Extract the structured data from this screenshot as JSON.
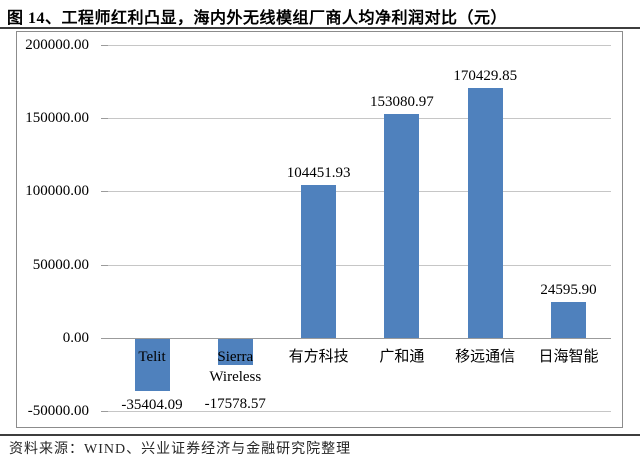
{
  "figure": {
    "title": "图 14、工程师红利凸显，海内外无线模组厂商人均净利润对比（元）",
    "source_note": "资料来源：WIND、兴业证券经济与金融研究院整理"
  },
  "colors": {
    "bar": "#4f81bd",
    "gridline": "#c6c6c6",
    "axis_line": "#9b9b9b",
    "chart_border": "#8c8c8c",
    "text": "#000000"
  },
  "chart_data": {
    "type": "bar",
    "title": "海内外无线模组厂商人均净利润对比（元）",
    "categories": [
      "Telit",
      "Sierra Wireless",
      "有方科技",
      "广和通",
      "移远通信",
      "日海智能"
    ],
    "values": [
      -35404.09,
      -17578.57,
      104451.93,
      153080.97,
      170429.85,
      24595.9
    ],
    "data_labels": [
      "-35404.09",
      "-17578.57",
      "104451.93",
      "153080.97",
      "170429.85",
      "24595.90"
    ],
    "y_ticks": [
      200000,
      150000,
      100000,
      50000,
      0,
      -50000
    ],
    "y_tick_labels": [
      "200000.00",
      "150000.00",
      "100000.00",
      "50000.00",
      "0.00",
      "-50000.00"
    ],
    "ylim": [
      -50000,
      200000
    ],
    "xlabel": "",
    "ylabel": "",
    "grid": true,
    "legend": "none",
    "bar_color": "#4f81bd"
  }
}
